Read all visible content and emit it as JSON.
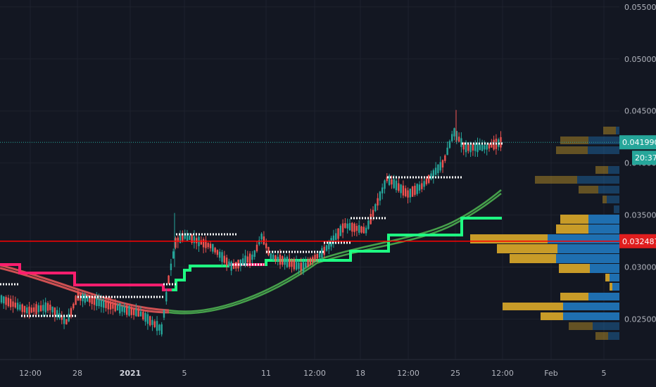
{
  "chart_data": {
    "type": "candlestick",
    "y_axis": {
      "ticks": [
        "0.025000",
        "0.030000",
        "0.035000",
        "0.040000",
        "0.045000",
        "0.050000",
        "0.055000"
      ],
      "tick_values": [
        0.025,
        0.03,
        0.035,
        0.04,
        0.045,
        0.05,
        0.055
      ],
      "range": [
        0.0225,
        0.0555
      ]
    },
    "x_axis": {
      "ticks": [
        "12:00",
        "28",
        "2021",
        "5",
        "11",
        "12:00",
        "18",
        "12:00",
        "25",
        "12:00",
        "Feb",
        "5"
      ],
      "bold_ticks": [
        "2021"
      ]
    },
    "price_badges": {
      "last_price": "0.041990",
      "countdown": "20:37",
      "horizontal_level": "0.032487"
    },
    "colors": {
      "background": "#131722",
      "up_candle": "#26a69a",
      "down_candle": "#ef5350",
      "level_line": "#ff0000",
      "supertrend_down": "#ff1e6e",
      "supertrend_up": "#1eff82",
      "moving_average_bear": "#f05a5a",
      "moving_average_bull": "#4caf50",
      "volume_profile_sell": "#c89b28",
      "volume_profile_buy": "#1f6fb0",
      "last_price_badge": "#26a69a",
      "level_badge": "#e01e1e"
    }
  }
}
